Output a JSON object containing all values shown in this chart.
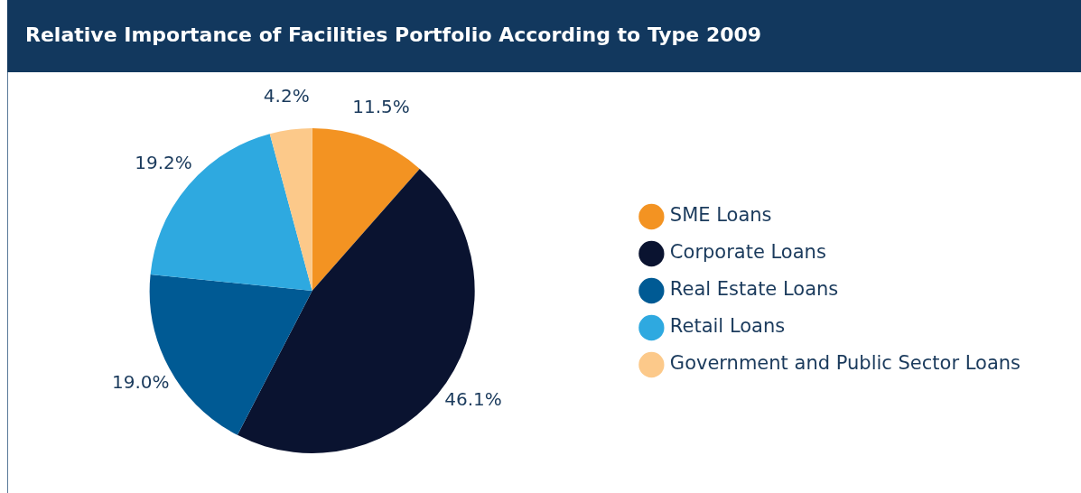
{
  "chart_data": {
    "type": "pie",
    "title": "Relative Importance of Facilities Portfolio According to Type 2009",
    "categories": [
      "SME Loans",
      "Corporate Loans",
      "Real Estate Loans",
      "Retail Loans",
      "Government and Public Sector Loans"
    ],
    "values": [
      11.5,
      46.1,
      19.0,
      19.2,
      4.2
    ],
    "colors": [
      "#f39322",
      "#0a1330",
      "#005a94",
      "#2ea9e0",
      "#fcc98a"
    ],
    "value_labels": [
      "11.5%",
      "46.1%",
      "19.0%",
      "19.2%",
      "4.2%"
    ],
    "legend": "right"
  }
}
